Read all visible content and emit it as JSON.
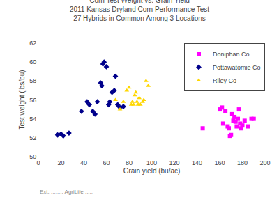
{
  "chart_data": {
    "type": "scatter",
    "title": "Corn Test Weight vs. Grain Yield\n2011 Kansas Dryland Corn Performance Test\n27 Hybrids in Common Among 3 Locations",
    "x_label": "Grain yield (bu/ac)",
    "y_label": "Test weight (lbs/bu)",
    "xlim": [
      0,
      200
    ],
    "ylim": [
      50,
      62
    ],
    "xticks": [
      0,
      20,
      40,
      60,
      80,
      100,
      120,
      140,
      160,
      180,
      200
    ],
    "yticks": [
      50,
      52,
      54,
      56,
      58,
      60,
      62
    ],
    "grid": false,
    "legend": "upper right",
    "hline": {
      "y": 56,
      "color": "black",
      "line_style": "dotted"
    },
    "annotations": [
      "Ext. ........ AgriLife ....."
    ],
    "series": [
      {
        "name": "Doniphan Co",
        "color": "#FF00FF",
        "marker": "square",
        "x": [
          145,
          160,
          162,
          163,
          165,
          167,
          168,
          169,
          170,
          171,
          172,
          173,
          174,
          175,
          176,
          177,
          178,
          179,
          180,
          182,
          185,
          188,
          190
        ],
        "values": [
          53.0,
          55.0,
          55.2,
          53.5,
          54.8,
          53.2,
          53.0,
          52.2,
          52.3,
          54.5,
          53.8,
          54.2,
          53.7,
          53.2,
          54.0,
          55.0,
          53.5,
          53.0,
          53.3,
          53.8,
          53.2,
          54.0,
          54.0
        ]
      },
      {
        "name": "Pottawatomie Co",
        "color": "#00008B",
        "marker": "diamond",
        "x": [
          17,
          20,
          22,
          27,
          38,
          43,
          45,
          48,
          50,
          52,
          55,
          56,
          57,
          58,
          60,
          62,
          63,
          65,
          67,
          68,
          70,
          72,
          75
        ],
        "values": [
          52.3,
          52.4,
          52.2,
          52.5,
          54.8,
          55.8,
          55.5,
          54.8,
          54.5,
          55.8,
          57.8,
          57.5,
          59.8,
          60.0,
          59.5,
          55.5,
          55.8,
          56.8,
          57.0,
          58.5,
          55.5,
          55.2,
          55.3
        ]
      },
      {
        "name": "Riley Co",
        "color": "#FFD700",
        "marker": "triangle",
        "x": [
          68,
          72,
          75,
          78,
          80,
          82,
          83,
          84,
          85,
          86,
          87,
          88,
          89,
          90,
          92,
          93,
          95,
          97
        ],
        "values": [
          56.0,
          55.0,
          55.8,
          57.0,
          57.3,
          55.5,
          55.8,
          55.5,
          56.5,
          56.8,
          55.8,
          55.5,
          56.2,
          55.5,
          55.8,
          56.0,
          58.0,
          57.5
        ]
      }
    ]
  }
}
